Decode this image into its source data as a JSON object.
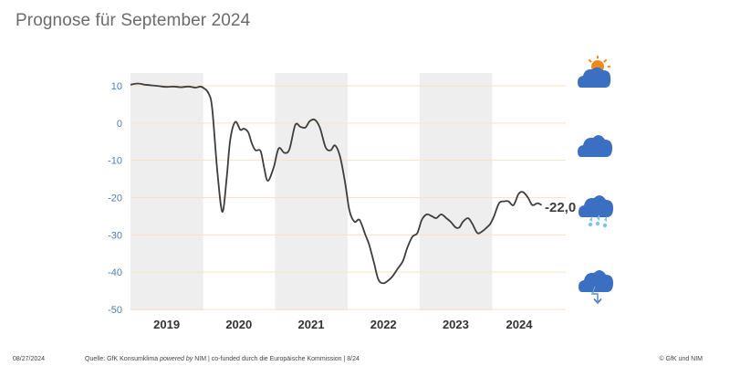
{
  "title": "Prognose für September 2024",
  "footer": {
    "date": "08/27/2024",
    "source_prefix": "Quelle: GfK Konsumklima ",
    "source_italic": "powered by",
    "source_suffix": " NIM | co-funded durch die Europäische Kommission | 8/24",
    "copyright": "© GfK und NIM"
  },
  "colors": {
    "line": "#3d3d3d",
    "shading": "#eeeeee",
    "gridline": "#f6e3c6",
    "tick_label": "#4e7db4",
    "year_label": "#333333",
    "icon_cloud": "#3a6fc2",
    "icon_sun": "#f08a1c",
    "icon_rain": "#7cc4e8"
  },
  "icons": [
    "sun-cloud-icon",
    "cloud-icon",
    "rain-cloud-icon",
    "storm-cloud-icon"
  ],
  "chart_data": {
    "type": "line",
    "title": "",
    "xlabel": "",
    "ylabel": "",
    "ylim": [
      -50,
      10
    ],
    "yticks": [
      10,
      0,
      -10,
      -20,
      -30,
      -40,
      -50
    ],
    "grid": true,
    "year_labels": [
      "2019",
      "2020",
      "2021",
      "2022",
      "2023",
      "2024"
    ],
    "shaded_years": [
      "2019",
      "2021",
      "2023"
    ],
    "xlim": [
      2019.0,
      2025.0
    ],
    "last_value_label": "-22,0",
    "series": [
      {
        "name": "",
        "x": [
          2019.0,
          2019.1,
          2019.2,
          2019.3,
          2019.4,
          2019.5,
          2019.6,
          2019.7,
          2019.8,
          2019.9,
          2019.97,
          2020.02,
          2020.08,
          2020.13,
          2020.2,
          2020.27,
          2020.33,
          2020.38,
          2020.45,
          2020.52,
          2020.57,
          2020.63,
          2020.68,
          2020.73,
          2020.8,
          2020.85,
          2020.9,
          2020.98,
          2021.05,
          2021.13,
          2021.2,
          2021.28,
          2021.35,
          2021.42,
          2021.48,
          2021.55,
          2021.62,
          2021.7,
          2021.77,
          2021.83,
          2021.9,
          2021.97,
          2022.03,
          2022.1,
          2022.17,
          2022.25,
          2022.3,
          2022.37,
          2022.43,
          2022.5,
          2022.57,
          2022.63,
          2022.7,
          2022.77,
          2022.83,
          2022.9,
          2022.97,
          2023.03,
          2023.1,
          2023.17,
          2023.23,
          2023.3,
          2023.37,
          2023.43,
          2023.5,
          2023.55,
          2023.6,
          2023.67,
          2023.73,
          2023.8,
          2023.87,
          2023.93,
          2023.98,
          2024.03,
          2024.1,
          2024.17,
          2024.23,
          2024.3,
          2024.37,
          2024.43,
          2024.5,
          2024.56,
          2024.63,
          2024.69
        ],
        "values": [
          10.3,
          10.6,
          10.3,
          10.1,
          9.9,
          9.7,
          9.8,
          9.6,
          9.8,
          9.5,
          9.8,
          9.3,
          8.0,
          4.0,
          -12.5,
          -23.8,
          -15.0,
          -4.5,
          0.3,
          -1.8,
          -1.5,
          -2.5,
          -5.5,
          -7.3,
          -7.5,
          -12.0,
          -15.5,
          -12.0,
          -6.8,
          -8.0,
          -7.0,
          -0.5,
          -1.0,
          -1.2,
          0.5,
          0.9,
          -1.2,
          -6.5,
          -7.3,
          -6.0,
          -9.0,
          -16.0,
          -23.5,
          -26.5,
          -26.0,
          -30.0,
          -32.5,
          -37.5,
          -42.0,
          -43.0,
          -42.2,
          -41.0,
          -39.0,
          -37.0,
          -33.5,
          -30.5,
          -29.5,
          -26.0,
          -24.5,
          -25.0,
          -25.5,
          -24.5,
          -25.5,
          -26.5,
          -28.0,
          -28.0,
          -26.5,
          -25.5,
          -27.0,
          -29.5,
          -29.0,
          -28.0,
          -27.0,
          -25.0,
          -21.5,
          -21.0,
          -21.0,
          -22.0,
          -19.0,
          -18.5,
          -20.0,
          -22.0,
          -21.5,
          -22.0
        ]
      }
    ]
  }
}
